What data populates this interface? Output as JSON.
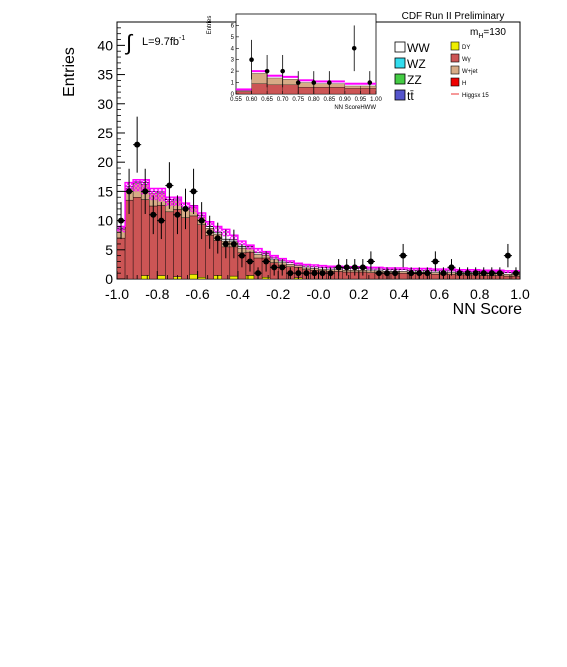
{
  "header": {
    "experiment": "CDF Run II Preliminary",
    "luminosity": "L=9.7fb",
    "luminosity_superscript": "-1",
    "mass_label": "m",
    "mass_subscript": "H",
    "mass_value": "=130"
  },
  "legend": {
    "left": [
      {
        "label": "WW",
        "color": "#ffffff"
      },
      {
        "label": "WZ",
        "color": "#33ddee"
      },
      {
        "label": "ZZ",
        "color": "#44cc44"
      },
      {
        "label": "tt̄",
        "color": "#5555cc"
      }
    ],
    "right": [
      {
        "label": "DY",
        "color": "#eeee00"
      },
      {
        "label": "Wγ",
        "color": "#cc5555"
      },
      {
        "label": "W+jet",
        "color": "#d7ab86"
      },
      {
        "label": "H",
        "color": "#ee0000"
      },
      {
        "label": "Higgsx 15",
        "color": "#ee3333"
      }
    ]
  },
  "chart_data": [
    {
      "type": "bar",
      "xlabel": "NN Score",
      "ylabel": "Entries",
      "xlim": [
        -1.0,
        1.0
      ],
      "ylim": [
        0,
        44
      ],
      "x_ticks": [
        "-1.0",
        "-0.8",
        "-0.6",
        "-0.4",
        "-0.2",
        "-0.0",
        "0.2",
        "0.4",
        "0.6",
        "0.8",
        "1.0"
      ],
      "y_ticks": [
        "0",
        "5",
        "10",
        "15",
        "20",
        "25",
        "30",
        "35",
        "40"
      ],
      "bin_edges": [
        -1.0,
        -0.96,
        -0.92,
        -0.88,
        -0.84,
        -0.8,
        -0.76,
        -0.72,
        -0.68,
        -0.64,
        -0.6,
        -0.56,
        -0.52,
        -0.48,
        -0.44,
        -0.4,
        -0.36,
        -0.32,
        -0.28,
        -0.24,
        -0.2,
        -0.16,
        -0.12,
        -0.08,
        -0.04,
        0.0,
        0.04,
        0.08,
        0.12,
        0.16,
        0.2,
        0.24,
        0.28,
        0.32,
        0.36,
        0.4,
        0.44,
        0.48,
        0.52,
        0.56,
        0.6,
        0.64,
        0.68,
        0.72,
        0.76,
        0.8,
        0.84,
        0.88,
        0.92,
        0.96,
        1.0
      ],
      "stack": [
        {
          "component": "DY",
          "color": "#eeee00",
          "values": [
            0,
            0,
            0,
            0.6,
            0,
            0.6,
            0,
            0.4,
            0,
            0.8,
            0.3,
            0,
            0.6,
            0,
            0.5,
            0,
            0.6,
            0,
            0.3,
            0,
            0,
            0,
            0.2,
            0,
            0,
            0,
            0,
            0,
            0,
            0,
            0,
            0,
            0,
            0,
            0,
            0,
            0,
            0,
            0,
            0,
            0,
            0,
            0,
            0,
            0,
            0,
            0,
            0,
            0,
            0
          ]
        },
        {
          "component": "Wγ",
          "color": "#cc5555",
          "values": [
            7,
            13.5,
            14,
            13,
            12.5,
            12,
            11.5,
            11.5,
            10.5,
            10,
            9,
            7.5,
            6,
            5.5,
            5,
            4.5,
            4,
            3.6,
            3.3,
            2.8,
            2.4,
            2.1,
            1.8,
            1.6,
            1.5,
            1.4,
            1.3,
            1.3,
            1.2,
            1.2,
            1.2,
            1.1,
            1.1,
            1,
            1,
            1,
            0.9,
            0.9,
            0.9,
            0.8,
            0.8,
            0.8,
            0.7,
            0.7,
            0.7,
            0.6,
            0.6,
            0.6,
            0.5,
            0.5
          ]
        },
        {
          "component": "W+jet",
          "color": "#d7ab86",
          "values": [
            1.5,
            2,
            2.3,
            2.6,
            2.2,
            2,
            1.8,
            1.5,
            1.5,
            1.5,
            1.3,
            1.2,
            1.1,
            1,
            0.9,
            0.8,
            0.7,
            0.6,
            0.5,
            0.5,
            0.4,
            0.4,
            0.3,
            0.3,
            0.3,
            0.3,
            0.3,
            0.3,
            0.3,
            0.3,
            0.3,
            0.3,
            0.3,
            0.3,
            0.3,
            0.3,
            0.3,
            0.3,
            0.3,
            0.3,
            0.3,
            0.3,
            0.3,
            0.3,
            0.3,
            0.3,
            0.3,
            0.3,
            0.3,
            0.3
          ]
        },
        {
          "component": "WW",
          "color": "#ffffff",
          "values": [
            0.2,
            0.3,
            0.3,
            0.3,
            0.3,
            0.3,
            0.3,
            0.3,
            0.3,
            0.3,
            0.3,
            0.3,
            0.3,
            0.3,
            0.3,
            0.3,
            0.3,
            0.3,
            0.3,
            0.3,
            0.3,
            0.3,
            0.3,
            0.3,
            0.3,
            0.3,
            0.3,
            0.3,
            0.3,
            0.3,
            0.3,
            0.3,
            0.3,
            0.3,
            0.3,
            0.3,
            0.3,
            0.3,
            0.3,
            0.3,
            0.3,
            0.3,
            0.3,
            0.3,
            0.3,
            0.3,
            0.3,
            0.3,
            0.3,
            0.3
          ]
        }
      ],
      "uncertainty_top": [
        9,
        16.5,
        17,
        17,
        15.5,
        15.5,
        14,
        14,
        13,
        12.5,
        11.3,
        9.8,
        9,
        8.5,
        7.5,
        6.5,
        5.8,
        5.2,
        4.7,
        4,
        3.5,
        3.1,
        2.7,
        2.5,
        2.4,
        2.3,
        2.2,
        2.2,
        2.1,
        2.1,
        2.1,
        2,
        2,
        1.9,
        1.9,
        1.9,
        1.8,
        1.8,
        1.8,
        1.7,
        1.7,
        1.7,
        1.6,
        1.6,
        1.6,
        1.5,
        1.5,
        1.5,
        1.4,
        1.4
      ],
      "uncertainty_bottom": [
        8,
        15,
        15,
        14.5,
        13.5,
        13.3,
        12.5,
        12.5,
        12,
        11.5,
        10.3,
        9,
        8,
        7.3,
        6.8,
        5.8,
        5,
        4.5,
        4.1,
        3.5,
        3.1,
        2.7,
        2.3,
        2.1,
        2,
        1.9,
        1.8,
        1.8,
        1.7,
        1.7,
        1.7,
        1.6,
        1.6,
        1.5,
        1.5,
        1.5,
        1.4,
        1.4,
        1.4,
        1.3,
        1.3,
        1.3,
        1.2,
        1.2,
        1.2,
        1.1,
        1.1,
        1.1,
        1.0,
        1.0
      ],
      "data_points": {
        "x": [
          -0.98,
          -0.94,
          -0.9,
          -0.86,
          -0.82,
          -0.78,
          -0.74,
          -0.7,
          -0.66,
          -0.62,
          -0.58,
          -0.54,
          -0.5,
          -0.46,
          -0.42,
          -0.38,
          -0.34,
          -0.3,
          -0.26,
          -0.22,
          -0.18,
          -0.14,
          -0.1,
          -0.06,
          -0.02,
          0.02,
          0.06,
          0.1,
          0.14,
          0.18,
          0.22,
          0.26,
          0.3,
          0.34,
          0.38,
          0.42,
          0.46,
          0.5,
          0.54,
          0.58,
          0.62,
          0.66,
          0.7,
          0.74,
          0.78,
          0.82,
          0.86,
          0.9,
          0.94,
          0.98
        ],
        "y": [
          10,
          15,
          23,
          15,
          11,
          10,
          16,
          11,
          12,
          15,
          10,
          8,
          7,
          6,
          6,
          4,
          3,
          1,
          3,
          2,
          2,
          1,
          1,
          1,
          1,
          1,
          1,
          2,
          2,
          2,
          2,
          3,
          1,
          1,
          1,
          4,
          1,
          1,
          1,
          3,
          1,
          2,
          1,
          1,
          1,
          1,
          1,
          1,
          4,
          1
        ]
      }
    },
    {
      "type": "bar",
      "xlabel": "NN ScoreHWW",
      "ylabel": "Entries",
      "xlim": [
        0.55,
        1.0
      ],
      "ylim": [
        0,
        7
      ],
      "x_ticks": [
        "0.55",
        "0.60",
        "0.65",
        "0.70",
        "0.75",
        "0.80",
        "0.85",
        "0.90",
        "0.95",
        "1.00"
      ],
      "y_ticks": [
        "0",
        "1",
        "2",
        "3",
        "4",
        "5",
        "6"
      ],
      "bin_edges": [
        0.55,
        0.6,
        0.65,
        0.7,
        0.75,
        0.8,
        0.85,
        0.9,
        0.95,
        1.0
      ],
      "stack_total": [
        0.3,
        1.8,
        1.4,
        1.3,
        1.0,
        0.9,
        0.9,
        0.7,
        0.7
      ],
      "stack_base": [
        0.2,
        0.9,
        0.8,
        0.8,
        0.6,
        0.6,
        0.6,
        0.5,
        0.5
      ],
      "uncertainty_top": [
        0.4,
        2.0,
        1.6,
        1.5,
        1.2,
        1.1,
        1.1,
        0.9,
        0.9
      ],
      "data_points": {
        "x": [
          0.6,
          0.65,
          0.7,
          0.75,
          0.8,
          0.85,
          0.93,
          0.98
        ],
        "y": [
          3,
          2,
          2,
          1,
          1,
          1,
          4,
          1
        ]
      }
    }
  ]
}
